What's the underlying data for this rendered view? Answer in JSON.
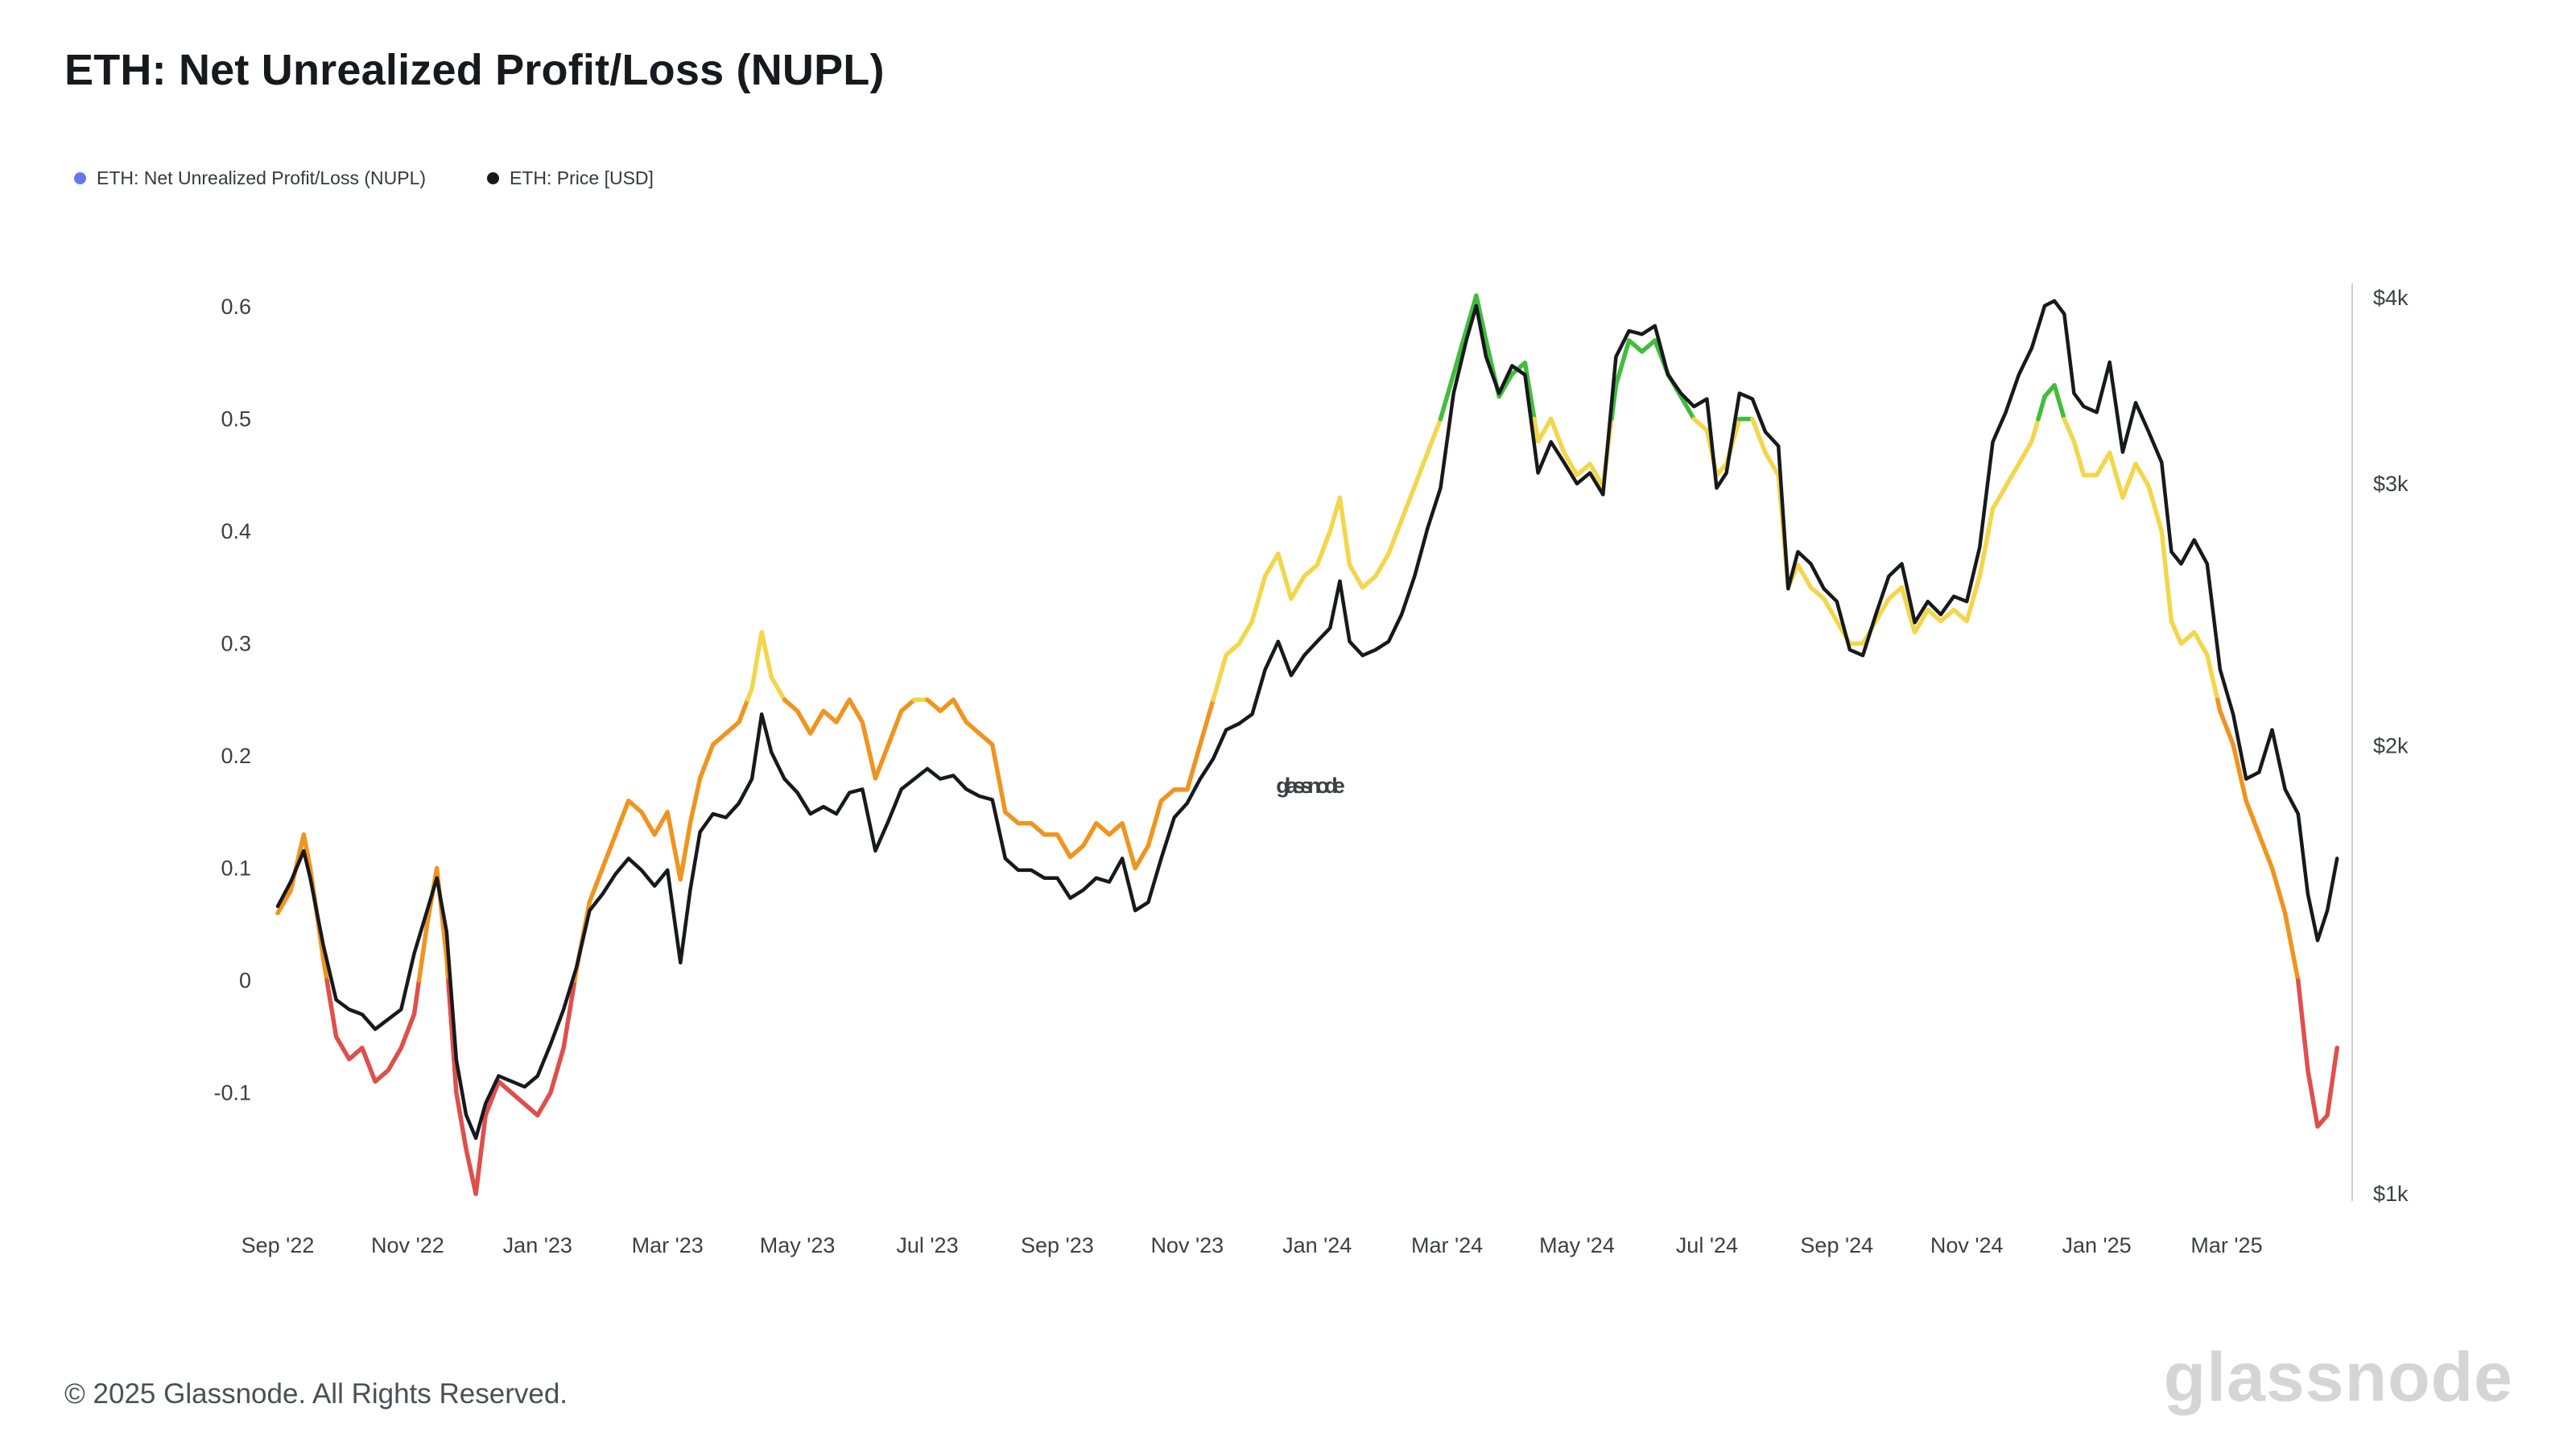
{
  "page": {
    "title": "ETH: Net Unrealized Profit/Loss (NUPL)",
    "watermark": "glassnode",
    "footer_copyright": "© 2025 Glassnode. All Rights Reserved.",
    "brand_wordmark": "glassnode"
  },
  "legend": {
    "items": [
      {
        "label": "ETH: Net Unrealized Profit/Loss (NUPL)",
        "color": "#6576f3"
      },
      {
        "label": "ETH: Price [USD]",
        "color": "#17191c"
      }
    ]
  },
  "chart_data": {
    "type": "line",
    "title": "ETH: Net Unrealized Profit/Loss (NUPL)",
    "x_tick_labels": [
      "Sep '22",
      "Nov '22",
      "Jan '23",
      "Mar '23",
      "May '23",
      "Jul '23",
      "Sep '23",
      "Nov '23",
      "Jan '24",
      "Mar '24",
      "May '24",
      "Jul '24",
      "Sep '24",
      "Nov '24",
      "Jan '25",
      "Mar '25"
    ],
    "x_tick_months": [
      0,
      2,
      4,
      6,
      8,
      10,
      12,
      14,
      16,
      18,
      20,
      22,
      24,
      26,
      28,
      30
    ],
    "left_axis": {
      "ticks": [
        0.6,
        0.5,
        0.4,
        0.3,
        0.2,
        0.1,
        0,
        -0.1
      ],
      "min": -0.2,
      "max": 0.62
    },
    "right_axis": {
      "scale": "log",
      "tick_labels": [
        "$4k",
        "$3k",
        "$2k",
        "$1k"
      ],
      "tick_values": [
        4000,
        3000,
        2000,
        1000
      ]
    },
    "nupl_bands": [
      {
        "max": 0,
        "color": "#df4f4b"
      },
      {
        "max": 0.25,
        "color": "#f0941f"
      },
      {
        "max": 0.5,
        "color": "#f3d64a"
      },
      {
        "max": null,
        "color": "#41bd3e"
      }
    ],
    "x_months_since_sep_2022": [
      0,
      0.2,
      0.4,
      0.5,
      0.7,
      0.9,
      1.1,
      1.3,
      1.5,
      1.7,
      1.9,
      2.1,
      2.3,
      2.45,
      2.6,
      2.75,
      2.9,
      3.05,
      3.2,
      3.4,
      3.6,
      3.8,
      4,
      4.2,
      4.4,
      4.6,
      4.8,
      5,
      5.2,
      5.4,
      5.6,
      5.8,
      6,
      6.2,
      6.35,
      6.5,
      6.7,
      6.9,
      7.1,
      7.3,
      7.45,
      7.6,
      7.8,
      8,
      8.2,
      8.4,
      8.6,
      8.8,
      9,
      9.2,
      9.4,
      9.6,
      9.8,
      10,
      10.2,
      10.4,
      10.6,
      10.8,
      11,
      11.2,
      11.4,
      11.6,
      11.8,
      12,
      12.2,
      12.4,
      12.6,
      12.8,
      13,
      13.2,
      13.4,
      13.6,
      13.8,
      14,
      14.2,
      14.4,
      14.6,
      14.8,
      15,
      15.2,
      15.4,
      15.6,
      15.8,
      16,
      16.2,
      16.35,
      16.5,
      16.7,
      16.9,
      17.1,
      17.3,
      17.5,
      17.7,
      17.9,
      18.1,
      18.3,
      18.45,
      18.6,
      18.8,
      19,
      19.2,
      19.4,
      19.6,
      19.8,
      20,
      20.2,
      20.4,
      20.6,
      20.8,
      21,
      21.2,
      21.4,
      21.6,
      21.8,
      22,
      22.15,
      22.3,
      22.5,
      22.7,
      22.9,
      23.1,
      23.25,
      23.4,
      23.6,
      23.8,
      24,
      24.2,
      24.4,
      24.6,
      24.8,
      25,
      25.2,
      25.4,
      25.6,
      25.8,
      26,
      26.2,
      26.4,
      26.6,
      26.8,
      27,
      27.2,
      27.35,
      27.5,
      27.65,
      27.8,
      28,
      28.2,
      28.4,
      28.6,
      28.8,
      29,
      29.15,
      29.3,
      29.5,
      29.7,
      29.9,
      30.1,
      30.3,
      30.5,
      30.7,
      30.9,
      31.1,
      31.25,
      31.4,
      31.55,
      31.7
    ],
    "series": [
      {
        "name": "ETH: Net Unrealized Profit/Loss (NUPL)",
        "axis": "left",
        "values": [
          0.06,
          0.08,
          0.13,
          0.1,
          0.02,
          -0.05,
          -0.07,
          -0.06,
          -0.09,
          -0.08,
          -0.06,
          -0.03,
          0.05,
          0.1,
          0.02,
          -0.1,
          -0.15,
          -0.19,
          -0.12,
          -0.09,
          -0.1,
          -0.11,
          -0.12,
          -0.1,
          -0.06,
          0.01,
          0.07,
          0.1,
          0.13,
          0.16,
          0.15,
          0.13,
          0.15,
          0.09,
          0.14,
          0.18,
          0.21,
          0.22,
          0.23,
          0.26,
          0.31,
          0.27,
          0.25,
          0.24,
          0.22,
          0.24,
          0.23,
          0.25,
          0.23,
          0.18,
          0.21,
          0.24,
          0.25,
          0.25,
          0.24,
          0.25,
          0.23,
          0.22,
          0.21,
          0.15,
          0.14,
          0.14,
          0.13,
          0.13,
          0.11,
          0.12,
          0.14,
          0.13,
          0.14,
          0.1,
          0.12,
          0.16,
          0.17,
          0.17,
          0.21,
          0.25,
          0.29,
          0.3,
          0.32,
          0.36,
          0.38,
          0.34,
          0.36,
          0.37,
          0.4,
          0.43,
          0.37,
          0.35,
          0.36,
          0.38,
          0.41,
          0.44,
          0.47,
          0.5,
          0.54,
          0.58,
          0.61,
          0.57,
          0.52,
          0.54,
          0.55,
          0.48,
          0.5,
          0.47,
          0.45,
          0.46,
          0.44,
          0.53,
          0.57,
          0.56,
          0.57,
          0.54,
          0.52,
          0.5,
          0.49,
          0.45,
          0.46,
          0.5,
          0.5,
          0.47,
          0.45,
          0.35,
          0.37,
          0.35,
          0.34,
          0.32,
          0.3,
          0.3,
          0.32,
          0.34,
          0.35,
          0.31,
          0.33,
          0.32,
          0.33,
          0.32,
          0.36,
          0.42,
          0.44,
          0.46,
          0.48,
          0.52,
          0.53,
          0.5,
          0.48,
          0.45,
          0.45,
          0.47,
          0.43,
          0.46,
          0.44,
          0.4,
          0.32,
          0.3,
          0.31,
          0.29,
          0.24,
          0.21,
          0.16,
          0.13,
          0.1,
          0.06,
          0,
          -0.08,
          -0.13,
          -0.12,
          -0.06
        ]
      },
      {
        "name": "ETH: Price [USD]",
        "axis": "right",
        "color": "#17191c",
        "values": [
          1560,
          1620,
          1700,
          1630,
          1470,
          1350,
          1330,
          1320,
          1290,
          1310,
          1330,
          1450,
          1550,
          1630,
          1500,
          1230,
          1130,
          1090,
          1150,
          1200,
          1190,
          1180,
          1200,
          1260,
          1330,
          1420,
          1550,
          1590,
          1640,
          1680,
          1650,
          1610,
          1650,
          1430,
          1600,
          1750,
          1800,
          1790,
          1830,
          1900,
          2100,
          1980,
          1900,
          1860,
          1800,
          1820,
          1800,
          1860,
          1870,
          1700,
          1780,
          1870,
          1900,
          1930,
          1900,
          1910,
          1870,
          1850,
          1840,
          1680,
          1650,
          1650,
          1630,
          1630,
          1580,
          1600,
          1630,
          1620,
          1680,
          1550,
          1570,
          1680,
          1790,
          1830,
          1900,
          1960,
          2050,
          2070,
          2100,
          2250,
          2350,
          2230,
          2300,
          2350,
          2400,
          2580,
          2350,
          2300,
          2320,
          2350,
          2450,
          2600,
          2800,
          2980,
          3450,
          3750,
          3950,
          3650,
          3450,
          3600,
          3550,
          3050,
          3200,
          3100,
          3000,
          3050,
          2950,
          3650,
          3800,
          3780,
          3830,
          3550,
          3450,
          3380,
          3420,
          2980,
          3050,
          3450,
          3420,
          3250,
          3180,
          2550,
          2700,
          2650,
          2550,
          2500,
          2320,
          2300,
          2450,
          2600,
          2650,
          2420,
          2500,
          2450,
          2520,
          2500,
          2720,
          3200,
          3350,
          3550,
          3700,
          3950,
          3980,
          3900,
          3450,
          3380,
          3350,
          3620,
          3150,
          3400,
          3250,
          3100,
          2700,
          2650,
          2750,
          2650,
          2250,
          2100,
          1900,
          1920,
          2050,
          1870,
          1800,
          1590,
          1480,
          1550,
          1680
        ]
      }
    ]
  }
}
